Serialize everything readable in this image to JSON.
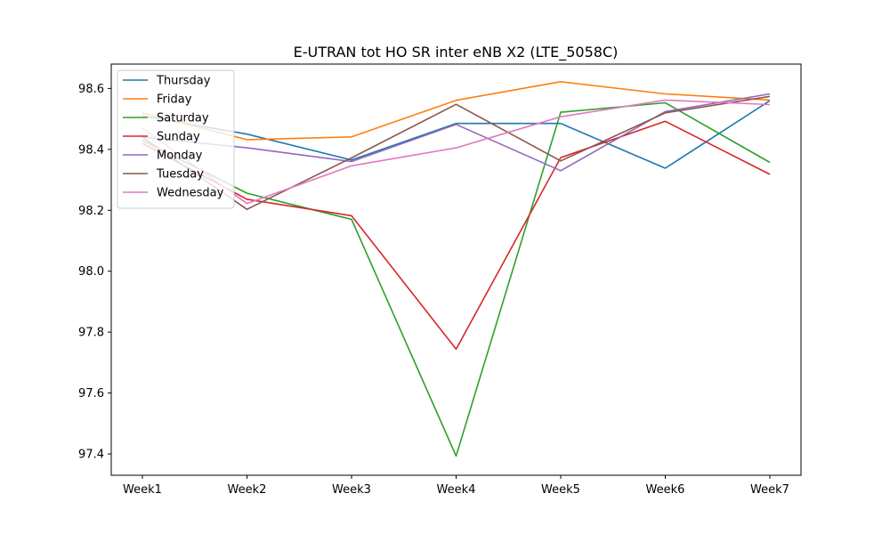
{
  "chart_data": {
    "type": "line",
    "title": "E-UTRAN tot HO SR inter eNB X2 (LTE_5058C)",
    "xlabel": "",
    "ylabel": "",
    "categories": [
      "Week1",
      "Week2",
      "Week3",
      "Week4",
      "Week5",
      "Week6",
      "Week7"
    ],
    "ylim": [
      97.33,
      98.68
    ],
    "yticks": [
      97.4,
      97.6,
      97.8,
      98.0,
      98.2,
      98.4,
      98.6
    ],
    "ytick_labels": [
      "97.4",
      "97.6",
      "97.8",
      "98.0",
      "98.2",
      "98.4",
      "98.6"
    ],
    "grid": false,
    "legend_position": "top-left",
    "series": [
      {
        "name": "Thursday",
        "color": "#1f77b4",
        "values": [
          98.51,
          98.45,
          98.365,
          98.485,
          98.485,
          98.338,
          98.56
        ]
      },
      {
        "name": "Friday",
        "color": "#ff7f0e",
        "values": [
          98.52,
          98.432,
          98.441,
          98.561,
          98.622,
          98.582,
          98.562
        ]
      },
      {
        "name": "Saturday",
        "color": "#2ca02c",
        "values": [
          98.43,
          98.256,
          98.17,
          97.393,
          98.522,
          98.553,
          98.357
        ]
      },
      {
        "name": "Sunday",
        "color": "#d62728",
        "values": [
          98.42,
          98.236,
          98.182,
          97.744,
          98.373,
          98.492,
          98.318
        ]
      },
      {
        "name": "Monday",
        "color": "#9467bd",
        "values": [
          98.44,
          98.405,
          98.36,
          98.482,
          98.33,
          98.524,
          98.582
        ]
      },
      {
        "name": "Tuesday",
        "color": "#8c564b",
        "values": [
          98.44,
          98.203,
          98.372,
          98.548,
          98.362,
          98.52,
          98.574
        ]
      },
      {
        "name": "Wednesday",
        "color": "#e377c2",
        "values": [
          98.47,
          98.222,
          98.346,
          98.405,
          98.507,
          98.562,
          98.547
        ]
      }
    ]
  }
}
